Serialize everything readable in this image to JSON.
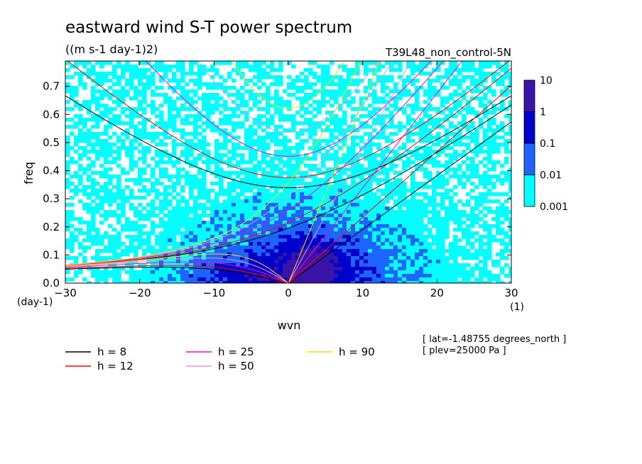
{
  "chart_data": {
    "type": "heatmap",
    "title": "eastward wind S-T power spectrum",
    "units": "((m s-1 day-1)2)",
    "run": "T39L48_non_control-5N",
    "xlabel": "wvn",
    "ylabel": "freq",
    "x_unit": "(1)",
    "y_unit": "(day-1)",
    "xlim": [
      -30,
      30
    ],
    "ylim": [
      0.0,
      0.79
    ],
    "x_ticks": [
      -30,
      -20,
      -10,
      0,
      10,
      20,
      30
    ],
    "y_ticks": [
      0.0,
      0.1,
      0.2,
      0.3,
      0.4,
      0.5,
      0.6,
      0.7
    ],
    "colorbar": {
      "levels": [
        "0.001",
        "0.01",
        "0.1",
        "1",
        "10"
      ],
      "colors": [
        "#00ffff",
        "#1e64ff",
        "#0000cc",
        "#3a13a8"
      ]
    },
    "legend": [
      {
        "label": "h =  8",
        "color": "#000000",
        "h": 8
      },
      {
        "label": "h = 12",
        "color": "#ff0000",
        "h": 12
      },
      {
        "label": "h = 25",
        "color": "#ff00c8",
        "h": 25
      },
      {
        "label": "h = 50",
        "color": "#e496e6",
        "h": 50
      },
      {
        "label": "h = 90",
        "color": "#ffdc00",
        "h": 90
      }
    ],
    "annotations": [
      "[ lat=-1.48755 degrees_north ]",
      "[ plev=25000 Pa ]"
    ]
  }
}
